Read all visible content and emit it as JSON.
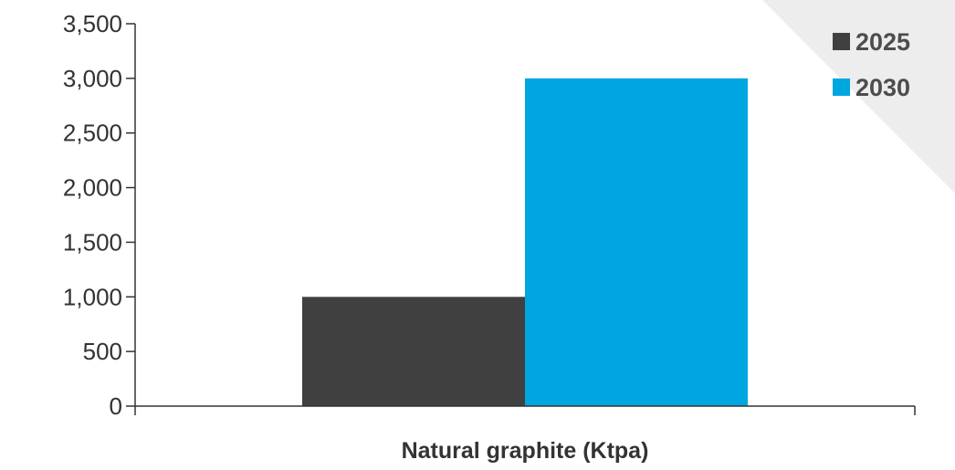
{
  "chart_data": {
    "type": "bar",
    "categories": [
      "Natural graphite (Ktpa)"
    ],
    "series": [
      {
        "name": "2025",
        "values": [
          1000
        ],
        "color": "#404040"
      },
      {
        "name": "2030",
        "values": [
          3000
        ],
        "color": "#00a6e0"
      }
    ],
    "title": "",
    "xlabel": "",
    "ylabel": "",
    "ylim": [
      0,
      3500
    ],
    "yticks": [
      0,
      500,
      1000,
      1500,
      2000,
      2500,
      3000,
      3500
    ],
    "ytick_labels": [
      "0",
      "500",
      "1,000",
      "1,500",
      "2,000",
      "2,500",
      "3,000",
      "3,500"
    ],
    "grid": false,
    "legend_position": "top-right"
  },
  "colors": {
    "axis": "#333333",
    "corner_accent": "#ededed"
  }
}
